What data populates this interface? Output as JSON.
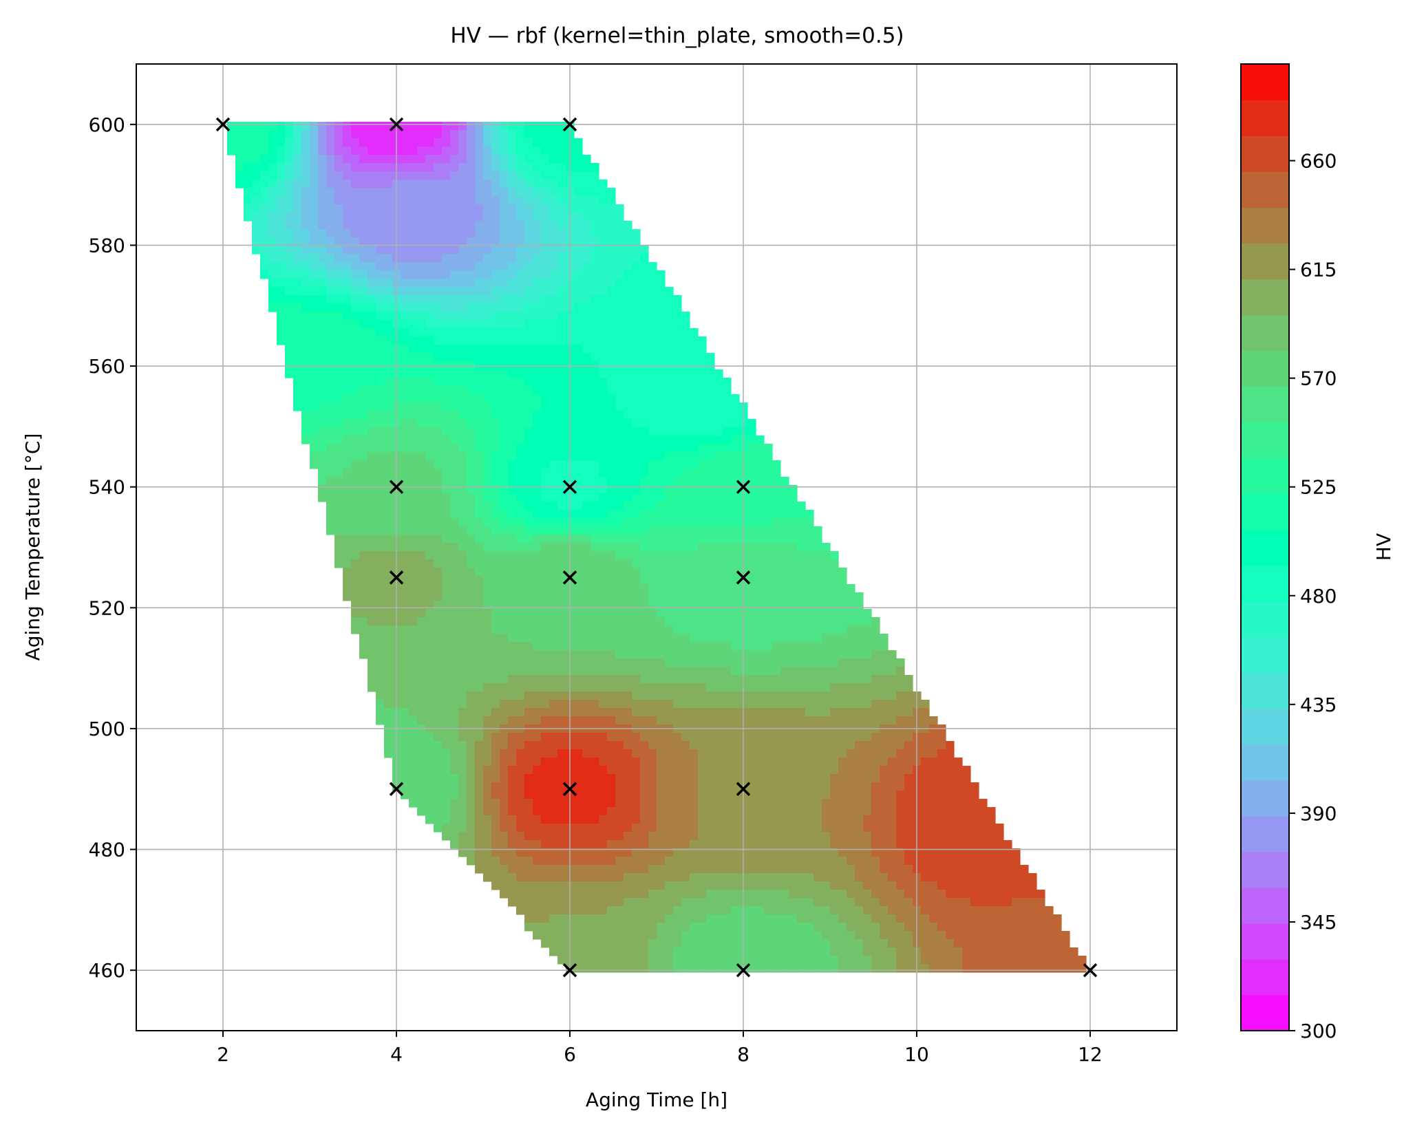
{
  "chart_data": {
    "type": "heatmap",
    "subtype": "filled-contour",
    "title": "HV — rbf (kernel=thin_plate, smooth=0.5)",
    "xlabel": "Aging Time [h]",
    "ylabel": "Aging Temperature [°C]",
    "xlim": [
      1,
      13
    ],
    "ylim": [
      450,
      610
    ],
    "xticks": [
      2,
      4,
      6,
      8,
      10,
      12
    ],
    "yticks": [
      460,
      480,
      500,
      520,
      540,
      560,
      580,
      600
    ],
    "grid": true,
    "colormap": "rainbow",
    "colorbar": {
      "label": "HV",
      "range": [
        300,
        700
      ],
      "ticks": [
        300,
        345,
        390,
        435,
        480,
        525,
        570,
        615,
        660
      ]
    },
    "domain_polygon": [
      [
        2,
        600
      ],
      [
        6,
        600
      ],
      [
        12,
        460
      ],
      [
        6,
        460
      ],
      [
        4,
        490
      ]
    ],
    "points": [
      {
        "x": 2,
        "y": 600
      },
      {
        "x": 4,
        "y": 600
      },
      {
        "x": 6,
        "y": 600
      },
      {
        "x": 4,
        "y": 540
      },
      {
        "x": 6,
        "y": 540
      },
      {
        "x": 8,
        "y": 540
      },
      {
        "x": 4,
        "y": 525
      },
      {
        "x": 6,
        "y": 525
      },
      {
        "x": 8,
        "y": 525
      },
      {
        "x": 4,
        "y": 490
      },
      {
        "x": 6,
        "y": 490
      },
      {
        "x": 8,
        "y": 490
      },
      {
        "x": 6,
        "y": 460
      },
      {
        "x": 8,
        "y": 460
      },
      {
        "x": 12,
        "y": 460
      }
    ],
    "field_sources": [
      {
        "x": 2,
        "y": 600,
        "hv": 520
      },
      {
        "x": 4,
        "y": 600,
        "hv": 320
      },
      {
        "x": 6,
        "y": 600,
        "hv": 500
      },
      {
        "x": 4,
        "y": 540,
        "hv": 570
      },
      {
        "x": 6,
        "y": 540,
        "hv": 490
      },
      {
        "x": 8,
        "y": 540,
        "hv": 530
      },
      {
        "x": 4,
        "y": 525,
        "hv": 600
      },
      {
        "x": 6,
        "y": 525,
        "hv": 580
      },
      {
        "x": 8,
        "y": 525,
        "hv": 560
      },
      {
        "x": 4,
        "y": 490,
        "hv": 570
      },
      {
        "x": 6,
        "y": 490,
        "hv": 675
      },
      {
        "x": 8,
        "y": 490,
        "hv": 625
      },
      {
        "x": 6,
        "y": 460,
        "hv": 610
      },
      {
        "x": 8,
        "y": 460,
        "hv": 570
      },
      {
        "x": 12,
        "y": 460,
        "hv": 650
      },
      {
        "x": 10.8,
        "y": 485,
        "hv": 670
      },
      {
        "x": 4.2,
        "y": 585,
        "hv": 380
      },
      {
        "x": 3.0,
        "y": 560,
        "hv": 520
      },
      {
        "x": 7.5,
        "y": 555,
        "hv": 480
      }
    ]
  }
}
